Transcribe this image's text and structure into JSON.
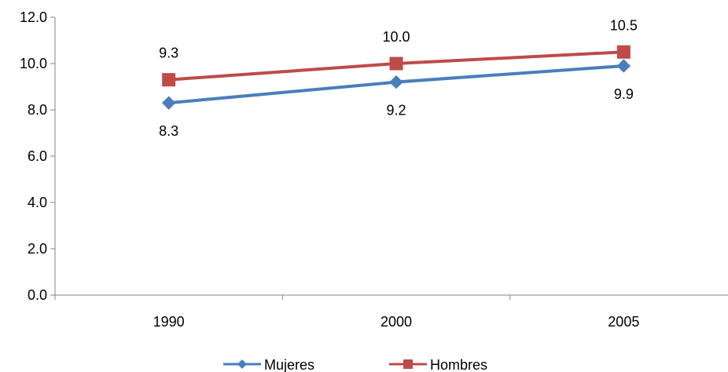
{
  "chart_data": {
    "type": "line",
    "categories": [
      "1990",
      "2000",
      "2005"
    ],
    "series": [
      {
        "name": "Mujeres",
        "values": [
          8.3,
          9.2,
          9.9
        ],
        "value_labels": [
          "8.3",
          "9.2",
          "9.9"
        ],
        "color": "#4a7ebb",
        "marker": "diamond",
        "label_position": "below"
      },
      {
        "name": "Hombres",
        "values": [
          9.3,
          10.0,
          10.5
        ],
        "value_labels": [
          "9.3",
          "10.0",
          "10.5"
        ],
        "color": "#be4b48",
        "marker": "square",
        "label_position": "above"
      }
    ],
    "ylim": [
      0,
      12
    ],
    "y_ticks": [
      0,
      2,
      4,
      6,
      8,
      10,
      12
    ],
    "y_tick_labels": [
      "0.0",
      "2.0",
      "4.0",
      "6.0",
      "8.0",
      "10.0",
      "12.0"
    ],
    "grid": false,
    "legend_position": "bottom",
    "axis_color": "#868686"
  }
}
